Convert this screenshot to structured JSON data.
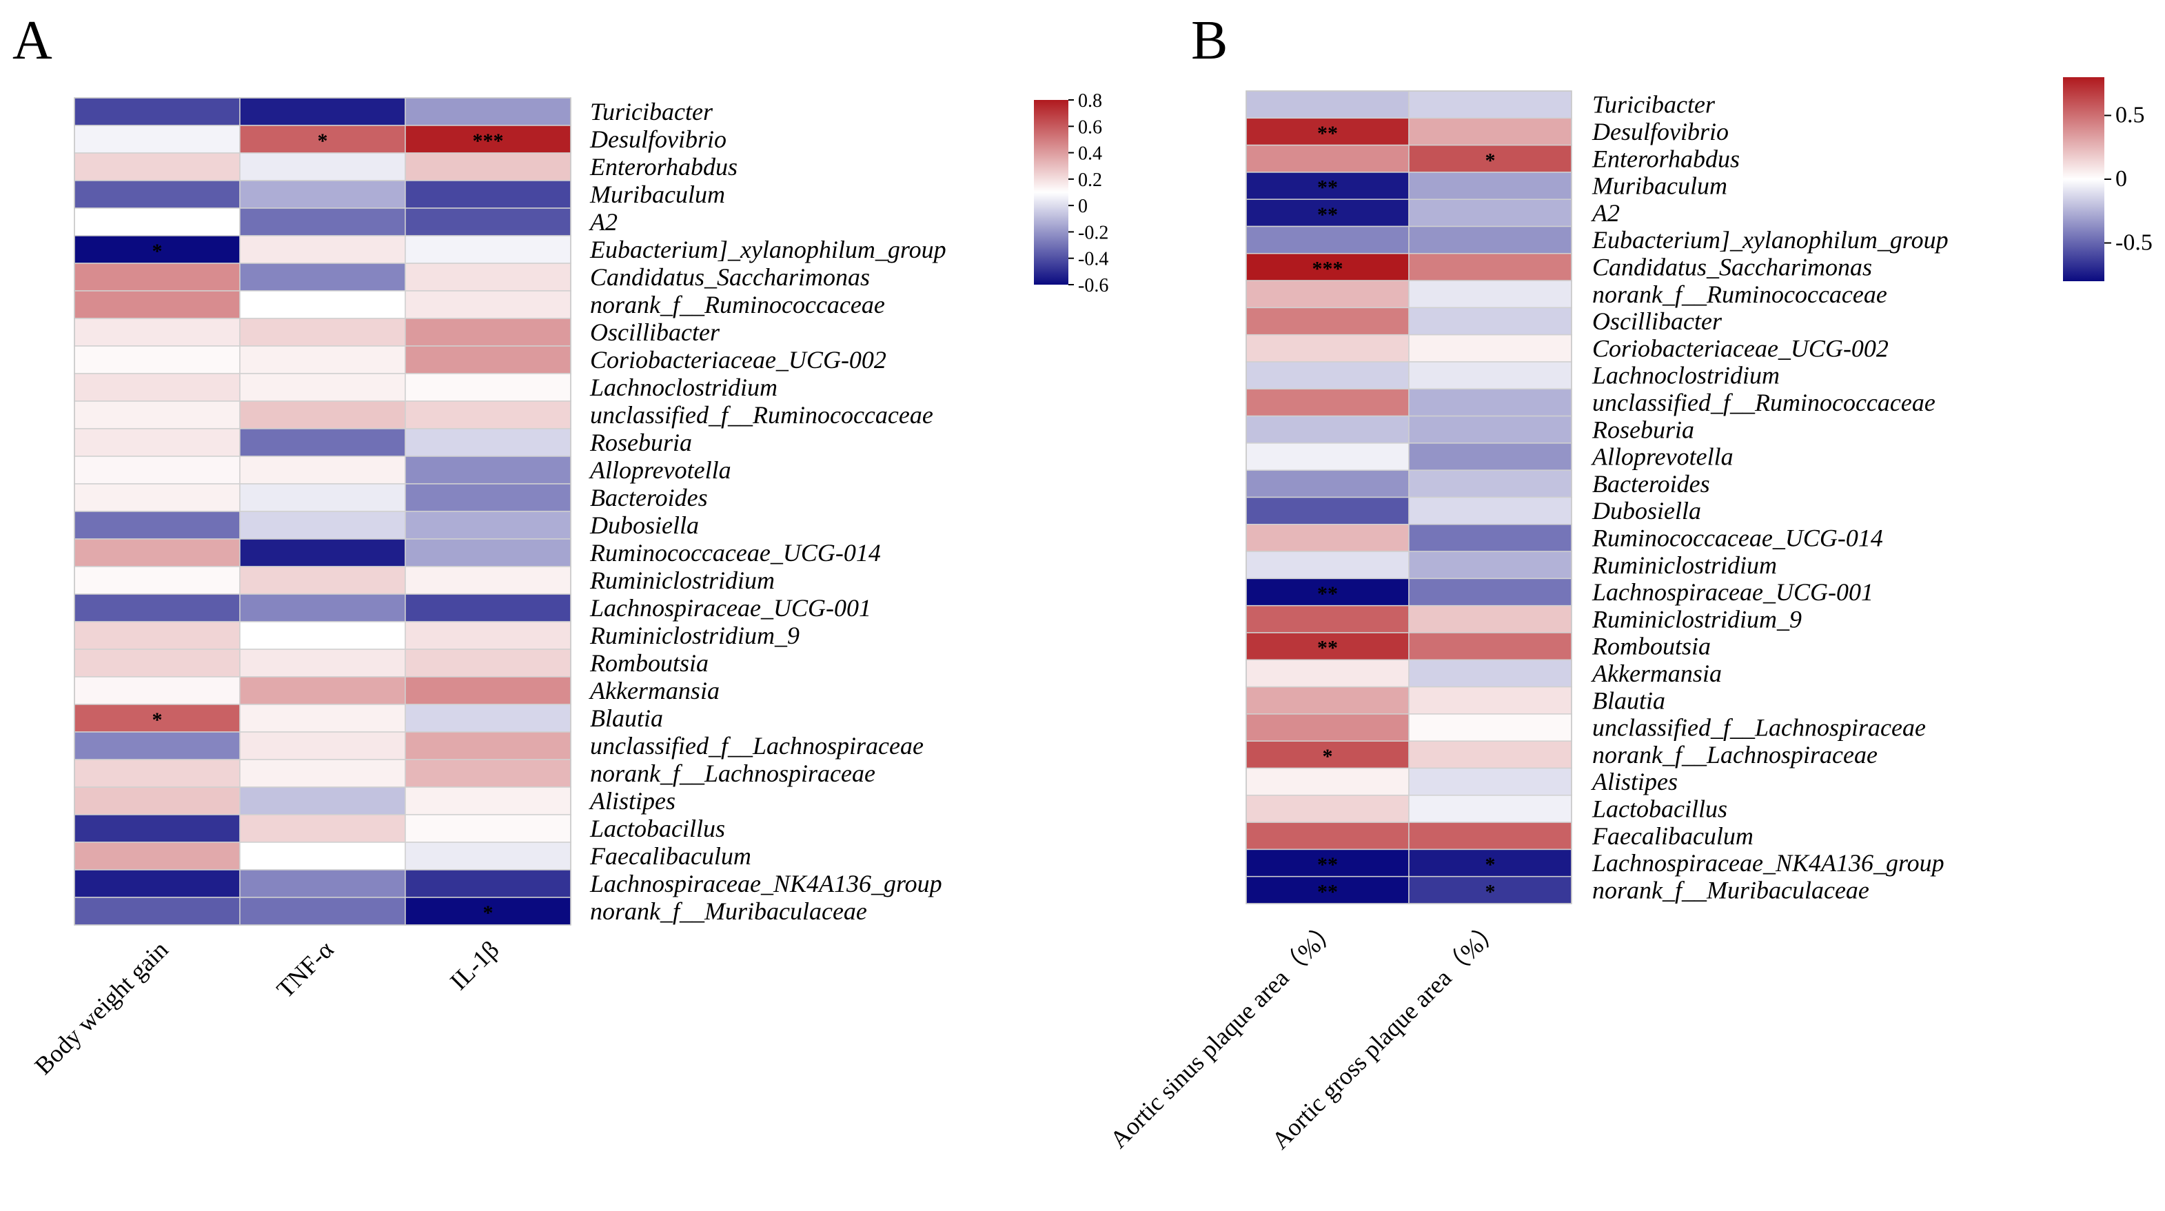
{
  "panels": [
    {
      "letter": "A"
    },
    {
      "letter": "B"
    }
  ],
  "chart_data": [
    {
      "type": "heatmap",
      "panel": "A",
      "columns": [
        "Body weight gain",
        "TNF-α",
        "IL-1β"
      ],
      "rows": [
        "Turicibacter",
        "Desulfovibrio",
        "Enterorhabdus",
        "Muribaculum",
        "A2",
        "Eubacterium]_xylanophilum_group",
        "Candidatus_Saccharimonas",
        "norank_f__Ruminococcaceae",
        "Oscillibacter",
        "Coriobacteriaceae_UCG-002",
        "Lachnoclostridium",
        "unclassified_f__Ruminococcaceae",
        "Roseburia",
        "Alloprevotella",
        "Bacteroides",
        "Dubosiella",
        "Ruminococcaceae_UCG-014",
        "Ruminiclostridium",
        "Lachnospiraceae_UCG-001",
        "Ruminiclostridium_9",
        "Romboutsia",
        "Akkermansia",
        "Blautia",
        "unclassified_f__Lachnospiraceae",
        "norank_f__Lachnospiraceae",
        "Alistipes",
        "Lactobacillus",
        "Faecalibaculum",
        "Lachnospiraceae_NK4A136_group",
        "norank_f__Muribaculaceae"
      ],
      "values": [
        [
          -0.45,
          -0.55,
          -0.25
        ],
        [
          -0.03,
          0.55,
          0.78
        ],
        [
          0.15,
          -0.05,
          0.2
        ],
        [
          -0.4,
          -0.2,
          -0.45
        ],
        [
          0.0,
          -0.35,
          -0.42
        ],
        [
          -0.6,
          0.08,
          -0.03
        ],
        [
          0.4,
          -0.3,
          0.1
        ],
        [
          0.4,
          0.0,
          0.08
        ],
        [
          0.08,
          0.15,
          0.35
        ],
        [
          0.02,
          0.05,
          0.35
        ],
        [
          0.1,
          0.05,
          0.02
        ],
        [
          0.05,
          0.2,
          0.15
        ],
        [
          0.08,
          -0.35,
          -0.1
        ],
        [
          0.03,
          0.05,
          -0.28
        ],
        [
          0.05,
          -0.05,
          -0.3
        ],
        [
          -0.35,
          -0.1,
          -0.2
        ],
        [
          0.3,
          -0.55,
          -0.22
        ],
        [
          0.02,
          0.15,
          0.05
        ],
        [
          -0.4,
          -0.3,
          -0.45
        ],
        [
          0.15,
          0.0,
          0.1
        ],
        [
          0.15,
          0.08,
          0.15
        ],
        [
          0.03,
          0.3,
          0.4
        ],
        [
          0.55,
          0.05,
          -0.1
        ],
        [
          -0.3,
          0.08,
          0.3
        ],
        [
          0.15,
          0.05,
          0.25
        ],
        [
          0.2,
          -0.15,
          0.05
        ],
        [
          -0.5,
          0.15,
          0.02
        ],
        [
          0.3,
          0.0,
          -0.05
        ],
        [
          -0.55,
          -0.3,
          -0.5
        ],
        [
          -0.4,
          -0.35,
          -0.6
        ]
      ],
      "significance": {
        "1-1": "*",
        "1-2": "***",
        "5-0": "*",
        "22-0": "*",
        "29-2": "*"
      },
      "colorbar": {
        "min": -0.6,
        "max": 0.8,
        "ticks": [
          "0.8",
          "0.6",
          "0.4",
          "0.2",
          "0",
          "-0.2",
          "-0.4",
          "-0.6"
        ]
      }
    },
    {
      "type": "heatmap",
      "panel": "B",
      "columns": [
        "Aortic sinus plaque area（%）",
        "Aortic gross plaque area（%）"
      ],
      "rows": [
        "Turicibacter",
        "Desulfovibrio",
        "Enterorhabdus",
        "Muribaculum",
        "A2",
        "Eubacterium]_xylanophilum_group",
        "Candidatus_Saccharimonas",
        "norank_f__Ruminococcaceae",
        "Oscillibacter",
        "Coriobacteriaceae_UCG-002",
        "Lachnoclostridium",
        "unclassified_f__Ruminococcaceae",
        "Roseburia",
        "Alloprevotella",
        "Bacteroides",
        "Dubosiella",
        "Ruminococcaceae_UCG-014",
        "Ruminiclostridium",
        "Lachnospiraceae_UCG-001",
        "Ruminiclostridium_9",
        "Romboutsia",
        "Akkermansia",
        "Blautia",
        "unclassified_f__Lachnospiraceae",
        "norank_f__Lachnospiraceae",
        "Alistipes",
        "Lactobacillus",
        "Faecalibaculum",
        "Lachnospiraceae_NK4A136_group",
        "norank_f__Muribaculaceae"
      ],
      "values": [
        [
          -0.2,
          -0.15
        ],
        [
          0.75,
          0.3
        ],
        [
          0.4,
          0.6
        ],
        [
          -0.75,
          -0.3
        ],
        [
          -0.75,
          -0.25
        ],
        [
          -0.4,
          -0.35
        ],
        [
          0.8,
          0.45
        ],
        [
          0.25,
          -0.08
        ],
        [
          0.45,
          -0.15
        ],
        [
          0.15,
          0.05
        ],
        [
          -0.15,
          -0.08
        ],
        [
          0.45,
          -0.25
        ],
        [
          -0.2,
          -0.25
        ],
        [
          -0.05,
          -0.35
        ],
        [
          -0.35,
          -0.2
        ],
        [
          -0.55,
          -0.12
        ],
        [
          0.25,
          -0.45
        ],
        [
          -0.1,
          -0.25
        ],
        [
          -0.85,
          -0.45
        ],
        [
          0.55,
          0.2
        ],
        [
          0.7,
          0.5
        ],
        [
          0.08,
          -0.15
        ],
        [
          0.3,
          0.1
        ],
        [
          0.4,
          0.02
        ],
        [
          0.6,
          0.15
        ],
        [
          0.05,
          -0.1
        ],
        [
          0.15,
          -0.05
        ],
        [
          0.55,
          0.55
        ],
        [
          -0.85,
          -0.75
        ],
        [
          -0.85,
          -0.65
        ]
      ],
      "significance": {
        "1-0": "**",
        "2-1": "*",
        "3-0": "**",
        "4-0": "**",
        "6-0": "***",
        "18-0": "**",
        "20-0": "**",
        "24-0": "*",
        "28-0": "**",
        "28-1": "*",
        "29-0": "**",
        "29-1": "*"
      },
      "colorbar": {
        "min": -0.8,
        "max": 0.8,
        "ticks": [
          "0.5",
          "0",
          "-0.5"
        ]
      }
    }
  ],
  "colors": {
    "negative": "#0a0a80",
    "neutral": "#ffffff",
    "positive": "#b0191e"
  }
}
